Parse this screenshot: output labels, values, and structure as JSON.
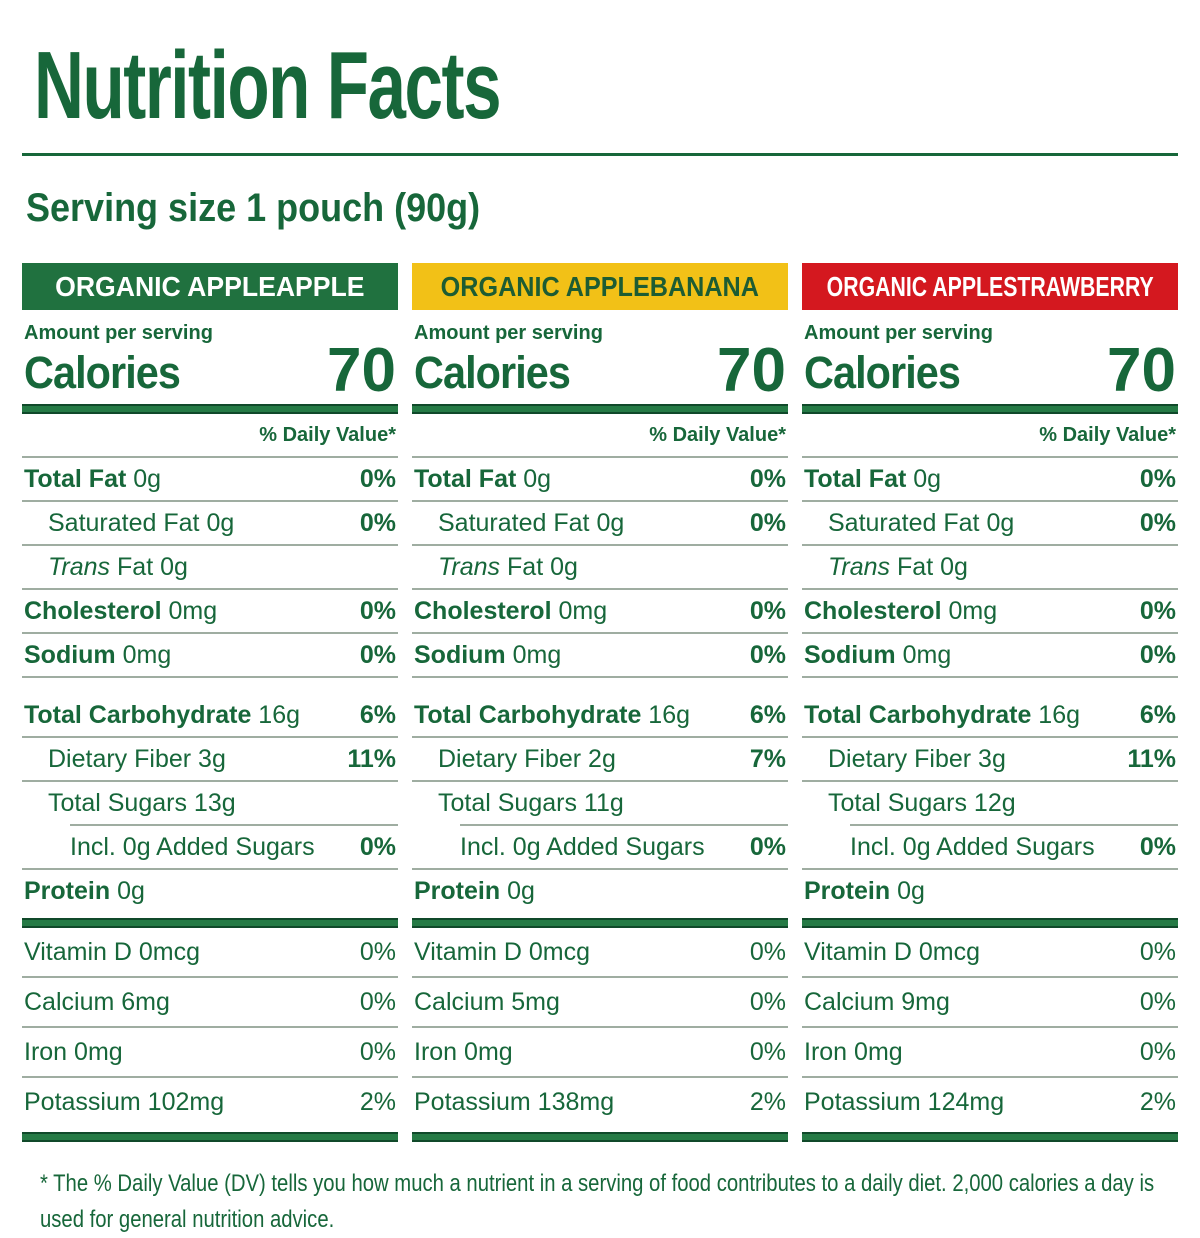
{
  "title": "Nutrition Facts",
  "serving_size": "Serving size 1 pouch (90g)",
  "footnote": "* The % Daily Value (DV) tells you how much a nutrient in a serving of food contributes to a daily diet. 2,000 calories a day is used for general nutrition advice.",
  "colors": {
    "text_green": "#17673a",
    "header_appleapple_bg": "#20713f",
    "header_appleapple_fg": "#ffffff",
    "header_applebanana_bg": "#f2c117",
    "header_applebanana_fg": "#1d5c33",
    "header_applestrawberry_bg": "#d4181f",
    "header_applestrawberry_fg": "#ffffff",
    "hairline": "#9fada1"
  },
  "columns": [
    {
      "header": "ORGANIC APPLEAPPLE",
      "amount_per_serving": "Amount per serving",
      "calories_label": "Calories",
      "calories_value": "70",
      "daily_value_header": "% Daily Value*",
      "rows": {
        "total_fat": {
          "label": "Total Fat",
          "amount": "0g",
          "dv": "0%"
        },
        "saturated_fat": {
          "label": "Saturated Fat",
          "amount": "0g",
          "dv": "0%"
        },
        "trans_fat": {
          "label": "Trans",
          "amount": "Fat 0g",
          "dv": ""
        },
        "cholesterol": {
          "label": "Cholesterol",
          "amount": "0mg",
          "dv": "0%"
        },
        "sodium": {
          "label": "Sodium",
          "amount": "0mg",
          "dv": "0%"
        },
        "total_carbohydrate": {
          "label": "Total Carbohydrate",
          "amount": "16g",
          "dv": "6%"
        },
        "dietary_fiber": {
          "label": "Dietary Fiber",
          "amount": "3g",
          "dv": "11%"
        },
        "total_sugars": {
          "label": "Total Sugars",
          "amount": "13g",
          "dv": ""
        },
        "added_sugars": {
          "label": "Incl. 0g Added Sugars",
          "amount": "",
          "dv": "0%"
        },
        "protein": {
          "label": "Protein",
          "amount": "0g",
          "dv": ""
        },
        "vitamin_d": {
          "label": "Vitamin D",
          "amount": "0mcg",
          "dv": "0%"
        },
        "calcium": {
          "label": "Calcium",
          "amount": "6mg",
          "dv": "0%"
        },
        "iron": {
          "label": "Iron",
          "amount": "0mg",
          "dv": "0%"
        },
        "potassium": {
          "label": "Potassium",
          "amount": "102mg",
          "dv": "2%"
        }
      }
    },
    {
      "header": "ORGANIC APPLEBANANA",
      "amount_per_serving": "Amount per serving",
      "calories_label": "Calories",
      "calories_value": "70",
      "daily_value_header": "% Daily Value*",
      "rows": {
        "total_fat": {
          "label": "Total Fat",
          "amount": "0g",
          "dv": "0%"
        },
        "saturated_fat": {
          "label": "Saturated Fat",
          "amount": "0g",
          "dv": "0%"
        },
        "trans_fat": {
          "label": "Trans",
          "amount": "Fat 0g",
          "dv": ""
        },
        "cholesterol": {
          "label": "Cholesterol",
          "amount": "0mg",
          "dv": "0%"
        },
        "sodium": {
          "label": "Sodium",
          "amount": "0mg",
          "dv": "0%"
        },
        "total_carbohydrate": {
          "label": "Total Carbohydrate",
          "amount": "16g",
          "dv": "6%"
        },
        "dietary_fiber": {
          "label": "Dietary Fiber",
          "amount": "2g",
          "dv": "7%"
        },
        "total_sugars": {
          "label": "Total Sugars",
          "amount": "11g",
          "dv": ""
        },
        "added_sugars": {
          "label": "Incl. 0g Added Sugars",
          "amount": "",
          "dv": "0%"
        },
        "protein": {
          "label": "Protein",
          "amount": "0g",
          "dv": ""
        },
        "vitamin_d": {
          "label": "Vitamin D",
          "amount": "0mcg",
          "dv": "0%"
        },
        "calcium": {
          "label": "Calcium",
          "amount": "5mg",
          "dv": "0%"
        },
        "iron": {
          "label": "Iron",
          "amount": "0mg",
          "dv": "0%"
        },
        "potassium": {
          "label": "Potassium",
          "amount": "138mg",
          "dv": "2%"
        }
      }
    },
    {
      "header": "ORGANIC APPLESTRAWBERRY",
      "amount_per_serving": "Amount per serving",
      "calories_label": "Calories",
      "calories_value": "70",
      "daily_value_header": "% Daily Value*",
      "rows": {
        "total_fat": {
          "label": "Total Fat",
          "amount": "0g",
          "dv": "0%"
        },
        "saturated_fat": {
          "label": "Saturated Fat",
          "amount": "0g",
          "dv": "0%"
        },
        "trans_fat": {
          "label": "Trans",
          "amount": "Fat 0g",
          "dv": ""
        },
        "cholesterol": {
          "label": "Cholesterol",
          "amount": "0mg",
          "dv": "0%"
        },
        "sodium": {
          "label": "Sodium",
          "amount": "0mg",
          "dv": "0%"
        },
        "total_carbohydrate": {
          "label": "Total Carbohydrate",
          "amount": "16g",
          "dv": "6%"
        },
        "dietary_fiber": {
          "label": "Dietary Fiber",
          "amount": "3g",
          "dv": "11%"
        },
        "total_sugars": {
          "label": "Total Sugars",
          "amount": "12g",
          "dv": ""
        },
        "added_sugars": {
          "label": "Incl. 0g Added Sugars",
          "amount": "",
          "dv": "0%"
        },
        "protein": {
          "label": "Protein",
          "amount": "0g",
          "dv": ""
        },
        "vitamin_d": {
          "label": "Vitamin D",
          "amount": "0mcg",
          "dv": "0%"
        },
        "calcium": {
          "label": "Calcium",
          "amount": "9mg",
          "dv": "0%"
        },
        "iron": {
          "label": "Iron",
          "amount": "0mg",
          "dv": "0%"
        },
        "potassium": {
          "label": "Potassium",
          "amount": "124mg",
          "dv": "2%"
        }
      }
    }
  ]
}
